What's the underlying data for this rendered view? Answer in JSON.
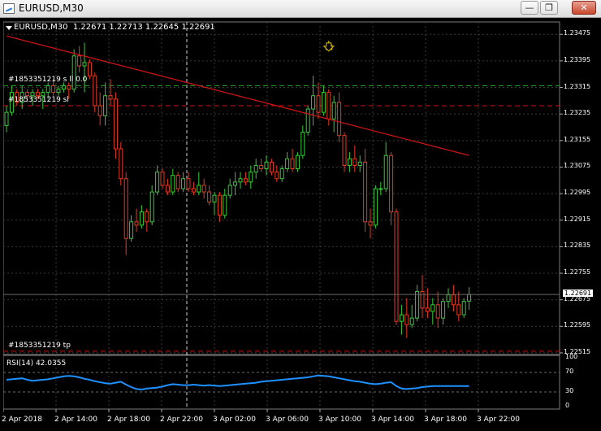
{
  "window": {
    "title": "EURUSD,M30",
    "buttons": [
      "minimize",
      "restore",
      "close"
    ]
  },
  "chart_data": {
    "type": "candlestick",
    "symbol_label": "EURUSD,M30",
    "ohlc_header": "1.22671 1.22713 1.22645 1.22691",
    "current_price": "1.22691",
    "price_axis": [
      "1.23475",
      "1.23395",
      "1.23315",
      "1.23235",
      "1.23155",
      "1.23075",
      "1.22995",
      "1.22915",
      "1.22835",
      "1.22755",
      "1.22675",
      "1.22595",
      "1.22515"
    ],
    "ylim": [
      1.2251,
      1.23505
    ],
    "time_axis": [
      "2 Apr 2018",
      "2 Apr 14:00",
      "2 Apr 18:00",
      "2 Apr 22:00",
      "3 Apr 02:00",
      "3 Apr 06:00",
      "3 Apr 10:00",
      "3 Apr 14:00",
      "3 Apr 18:00",
      "3 Apr 22:00"
    ],
    "order_lines": [
      {
        "label": "#1853351219 s ll 0.0",
        "price": 1.2332,
        "color": "#1ea01e",
        "style": "dash"
      },
      {
        "label": "#1853351219 sl",
        "price": 1.2326,
        "color": "#d01010",
        "style": "dash"
      },
      {
        "label": "#1853351219 tp",
        "price": 1.2252,
        "color": "#d01010",
        "style": "dash"
      }
    ],
    "trendline": {
      "color": "#c81414",
      "from": 1.2347,
      "to": 1.2311
    },
    "candles": [
      [
        1.232,
        1.2326,
        1.2318,
        1.2324
      ],
      [
        1.2324,
        1.2332,
        1.2323,
        1.233
      ],
      [
        1.233,
        1.2331,
        1.2326,
        1.2327
      ],
      [
        1.2327,
        1.2332,
        1.2325,
        1.233
      ],
      [
        1.233,
        1.2331,
        1.2327,
        1.2329
      ],
      [
        1.2329,
        1.2331,
        1.2326,
        1.233
      ],
      [
        1.233,
        1.2331,
        1.2328,
        1.2329
      ],
      [
        1.2329,
        1.2331,
        1.2325,
        1.233
      ],
      [
        1.233,
        1.2333,
        1.2328,
        1.2332
      ],
      [
        1.2332,
        1.2334,
        1.2329,
        1.233
      ],
      [
        1.233,
        1.2332,
        1.2329,
        1.2331
      ],
      [
        1.2331,
        1.2333,
        1.233,
        1.2332
      ],
      [
        1.2332,
        1.2333,
        1.2328,
        1.2331
      ],
      [
        1.2331,
        1.2343,
        1.233,
        1.2341
      ],
      [
        1.2341,
        1.2344,
        1.2336,
        1.2338
      ],
      [
        1.2338,
        1.2345,
        1.233,
        1.2339
      ],
      [
        1.2339,
        1.234,
        1.2334,
        1.2335
      ],
      [
        1.2335,
        1.2336,
        1.2324,
        1.2326
      ],
      [
        1.2326,
        1.233,
        1.232,
        1.2323
      ],
      [
        1.2323,
        1.2333,
        1.232,
        1.2329
      ],
      [
        1.2329,
        1.2334,
        1.2326,
        1.2328
      ],
      [
        1.2328,
        1.233,
        1.231,
        1.2313
      ],
      [
        1.2313,
        1.2315,
        1.2302,
        1.2304
      ],
      [
        1.2304,
        1.2306,
        1.2281,
        1.2286
      ],
      [
        1.2286,
        1.2293,
        1.2285,
        1.2291
      ],
      [
        1.2291,
        1.2295,
        1.2288,
        1.229
      ],
      [
        1.229,
        1.2296,
        1.2289,
        1.2294
      ],
      [
        1.2294,
        1.2295,
        1.2288,
        1.2291
      ],
      [
        1.2291,
        1.2302,
        1.229,
        1.23
      ],
      [
        1.23,
        1.2308,
        1.2299,
        1.2306
      ],
      [
        1.2306,
        1.2307,
        1.2301,
        1.2302
      ],
      [
        1.2302,
        1.2304,
        1.2299,
        1.23
      ],
      [
        1.23,
        1.2307,
        1.2299,
        1.2305
      ],
      [
        1.2305,
        1.2306,
        1.23,
        1.2301
      ],
      [
        1.2301,
        1.2306,
        1.23,
        1.2304
      ],
      [
        1.2304,
        1.2306,
        1.23,
        1.2301
      ],
      [
        1.2301,
        1.2303,
        1.2299,
        1.23
      ],
      [
        1.23,
        1.2306,
        1.2299,
        1.2302
      ],
      [
        1.2302,
        1.2304,
        1.2298,
        1.23
      ],
      [
        1.23,
        1.2302,
        1.2296,
        1.2297
      ],
      [
        1.2297,
        1.23,
        1.2293,
        1.2299
      ],
      [
        1.2299,
        1.23,
        1.2291,
        1.2293
      ],
      [
        1.2293,
        1.2301,
        1.2292,
        1.2299
      ],
      [
        1.2299,
        1.2304,
        1.2298,
        1.2302
      ],
      [
        1.2302,
        1.2306,
        1.2299,
        1.2303
      ],
      [
        1.2303,
        1.2306,
        1.2301,
        1.2304
      ],
      [
        1.2304,
        1.2306,
        1.2302,
        1.2303
      ],
      [
        1.2303,
        1.2308,
        1.2301,
        1.2306
      ],
      [
        1.2306,
        1.231,
        1.2304,
        1.2308
      ],
      [
        1.2308,
        1.231,
        1.2306,
        1.2307
      ],
      [
        1.2307,
        1.2311,
        1.2305,
        1.2309
      ],
      [
        1.2309,
        1.231,
        1.2305,
        1.2306
      ],
      [
        1.2306,
        1.2308,
        1.2303,
        1.2304
      ],
      [
        1.2304,
        1.2308,
        1.2303,
        1.2307
      ],
      [
        1.2307,
        1.2312,
        1.2306,
        1.231
      ],
      [
        1.231,
        1.2313,
        1.2306,
        1.2307
      ],
      [
        1.2307,
        1.2312,
        1.2306,
        1.2311
      ],
      [
        1.2311,
        1.232,
        1.231,
        1.2318
      ],
      [
        1.2318,
        1.2326,
        1.2317,
        1.2325
      ],
      [
        1.2325,
        1.2335,
        1.232,
        1.2329
      ],
      [
        1.2329,
        1.2333,
        1.2322,
        1.2324
      ],
      [
        1.2324,
        1.2332,
        1.2323,
        1.233
      ],
      [
        1.233,
        1.2331,
        1.232,
        1.2322
      ],
      [
        1.2322,
        1.2329,
        1.2318,
        1.2327
      ],
      [
        1.2327,
        1.233,
        1.2315,
        1.2317
      ],
      [
        1.2317,
        1.2318,
        1.2306,
        1.2308
      ],
      [
        1.2308,
        1.2312,
        1.2306,
        1.231
      ],
      [
        1.231,
        1.2314,
        1.2306,
        1.2308
      ],
      [
        1.2308,
        1.2311,
        1.2306,
        1.2309
      ],
      [
        1.2309,
        1.2313,
        1.2288,
        1.2291
      ],
      [
        1.2291,
        1.2295,
        1.2286,
        1.229
      ],
      [
        1.229,
        1.2302,
        1.2289,
        1.2301
      ],
      [
        1.2301,
        1.2303,
        1.2299,
        1.2301
      ],
      [
        1.2301,
        1.2315,
        1.23,
        1.2311
      ],
      [
        1.2311,
        1.2312,
        1.229,
        1.2294
      ],
      [
        1.2294,
        1.2295,
        1.226,
        1.2261
      ],
      [
        1.2261,
        1.2266,
        1.2257,
        1.2263
      ],
      [
        1.2263,
        1.2268,
        1.2256,
        1.226
      ],
      [
        1.226,
        1.2266,
        1.2259,
        1.2262
      ],
      [
        1.2262,
        1.2272,
        1.2261,
        1.227
      ],
      [
        1.227,
        1.2275,
        1.2262,
        1.2265
      ],
      [
        1.2265,
        1.2271,
        1.2262,
        1.2264
      ],
      [
        1.2264,
        1.2268,
        1.226,
        1.2266
      ],
      [
        1.2266,
        1.227,
        1.2259,
        1.2262
      ],
      [
        1.2262,
        1.2268,
        1.226,
        1.2267
      ],
      [
        1.2267,
        1.2271,
        1.2265,
        1.2269
      ],
      [
        1.2269,
        1.2272,
        1.2264,
        1.2266
      ],
      [
        1.2266,
        1.227,
        1.2261,
        1.2263
      ],
      [
        1.2263,
        1.2268,
        1.2262,
        1.2267
      ],
      [
        1.22671,
        1.22713,
        1.22645,
        1.22691
      ]
    ],
    "rsi": {
      "label": "RSI(14) 42.0355",
      "levels": [
        "100",
        "70",
        "30",
        "0"
      ],
      "values": [
        55,
        56,
        57,
        58,
        55,
        53,
        54,
        55,
        56,
        58,
        60,
        62,
        63,
        62,
        60,
        57,
        55,
        52,
        50,
        48,
        47,
        49,
        51,
        45,
        40,
        36,
        35,
        37,
        38,
        39,
        41,
        44,
        46,
        45,
        44,
        44,
        45,
        44,
        43,
        44,
        43,
        42,
        43,
        44,
        45,
        46,
        47,
        48,
        49,
        51,
        52,
        53,
        54,
        55,
        56,
        57,
        58,
        59,
        60,
        62,
        64,
        63,
        62,
        60,
        58,
        56,
        54,
        52,
        51,
        49,
        47,
        46,
        47,
        49,
        50,
        42,
        37,
        36,
        37,
        38,
        40,
        41,
        42,
        42,
        42,
        42,
        42,
        42,
        42,
        42
      ]
    }
  }
}
